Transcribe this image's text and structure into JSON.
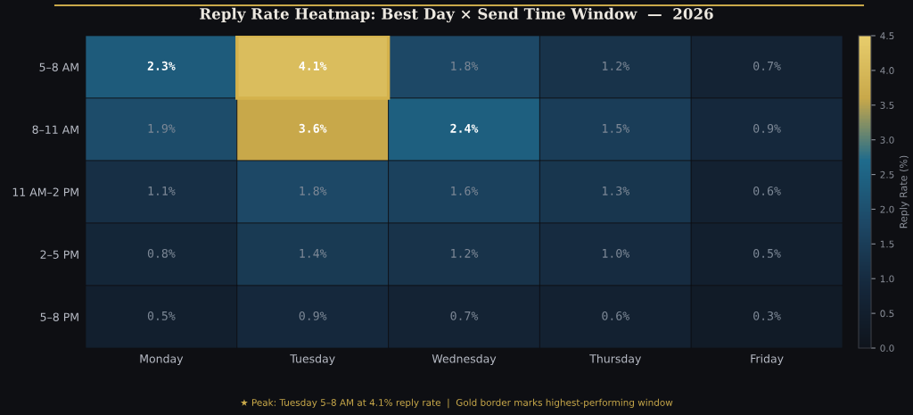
{
  "chart_data": {
    "type": "heatmap",
    "title": "Reply Rate Heatmap: Best Day × Send Time Window  —  2026",
    "categories": [
      "Monday",
      "Tuesday",
      "Wednesday",
      "Thursday",
      "Friday"
    ],
    "y_categories": [
      "5–8 AM",
      "8–11 AM",
      "11 AM–2 PM",
      "2–5 PM",
      "5–8 PM"
    ],
    "cells": [
      [
        2.3,
        4.1,
        1.8,
        1.2,
        0.7
      ],
      [
        1.9,
        3.6,
        2.4,
        1.5,
        0.9
      ],
      [
        1.1,
        1.8,
        1.6,
        1.3,
        0.6
      ],
      [
        0.8,
        1.4,
        1.2,
        1.0,
        0.5
      ],
      [
        0.5,
        0.9,
        0.7,
        0.6,
        0.3
      ]
    ],
    "cell_labels": [
      [
        "2.3%",
        "4.1%",
        "1.8%",
        "1.2%",
        "0.7%"
      ],
      [
        "1.9%",
        "3.6%",
        "2.4%",
        "1.5%",
        "0.9%"
      ],
      [
        "1.1%",
        "1.8%",
        "1.6%",
        "1.3%",
        "0.6%"
      ],
      [
        "0.8%",
        "1.4%",
        "1.2%",
        "1.0%",
        "0.5%"
      ],
      [
        "0.5%",
        "0.9%",
        "0.7%",
        "0.6%",
        "0.3%"
      ]
    ],
    "clim": [
      0.0,
      4.5
    ],
    "cticks": [
      {
        "value": 0,
        "label": "0.0"
      },
      {
        "value": 0.5,
        "label": "0.5"
      },
      {
        "value": 1,
        "label": "1.0"
      },
      {
        "value": 1.5,
        "label": "1.5"
      },
      {
        "value": 2,
        "label": "2.0"
      },
      {
        "value": 2.5,
        "label": "2.5"
      },
      {
        "value": 3,
        "label": "3.0"
      },
      {
        "value": 3.5,
        "label": "3.5"
      },
      {
        "value": 4,
        "label": "4.0"
      },
      {
        "value": 4.5,
        "label": "4.5"
      }
    ],
    "clabel": "Reply Rate (%)",
    "colors": [
      "#0f141c",
      "#15283c",
      "#1d4866",
      "#1f6b8c",
      "#c8a84a",
      "#e8cd6c"
    ],
    "annotations": [
      "★ Peak: Tuesday 5–8 AM at 4.1% reply rate  |  Gold border marks highest-performing window"
    ]
  }
}
